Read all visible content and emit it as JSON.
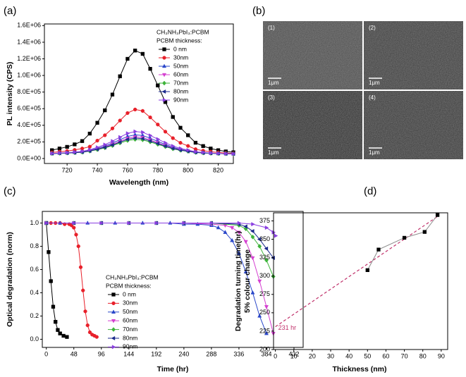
{
  "chart_data": [
    {
      "type": "line",
      "panel_label": "(a)",
      "xlabel": "Wavelength (nm)",
      "ylabel": "PL intensity (CPS)",
      "legend_title": "CH₃NH₃PbI₃:PCBM",
      "legend_subtitle": "PCBM thickness:",
      "xlim": [
        705,
        830
      ],
      "xticks": [
        720,
        740,
        760,
        780,
        800,
        820
      ],
      "ylim": [
        -60000,
        1620000
      ],
      "yticks": [
        {
          "value": 0,
          "label": "0.0E+00"
        },
        {
          "value": 200000,
          "label": "2.0E+05"
        },
        {
          "value": 400000,
          "label": "4.0E+05"
        },
        {
          "value": 600000,
          "label": "6.0E+05"
        },
        {
          "value": 800000,
          "label": "8.0E+05"
        },
        {
          "value": 1000000,
          "label": "1.0E+06"
        },
        {
          "value": 1200000,
          "label": "1.2E+06"
        },
        {
          "value": 1400000,
          "label": "1.4E+06"
        },
        {
          "value": 1600000,
          "label": "1.6E+06"
        }
      ],
      "x": [
        710,
        715,
        720,
        725,
        730,
        735,
        740,
        745,
        750,
        755,
        760,
        765,
        770,
        775,
        780,
        785,
        790,
        795,
        800,
        805,
        810,
        815,
        820,
        825,
        830
      ],
      "series": [
        {
          "name": "0  nm",
          "color": "#000000",
          "marker": "square",
          "values": [
            100000,
            120000,
            140000,
            170000,
            210000,
            300000,
            430000,
            580000,
            770000,
            990000,
            1200000,
            1300000,
            1260000,
            1080000,
            880000,
            680000,
            500000,
            370000,
            280000,
            190000,
            150000,
            120000,
            100000,
            85000,
            75000
          ]
        },
        {
          "name": "30nm",
          "color": "#e8202a",
          "marker": "circle",
          "values": [
            73000,
            82000,
            90000,
            103000,
            120000,
            142000,
            215000,
            280000,
            362000,
            457000,
            547000,
            590000,
            573000,
            495000,
            409000,
            323000,
            245000,
            189000,
            151000,
            112000,
            94000,
            82000,
            73000,
            66000,
            62000
          ]
        },
        {
          "name": "50nm",
          "color": "#2946c9",
          "marker": "triangle-up",
          "values": [
            60000,
            64000,
            68000,
            74000,
            81000,
            99000,
            122000,
            150000,
            186000,
            227000,
            266000,
            285000,
            277000,
            244000,
            207000,
            169000,
            135000,
            111000,
            94000,
            77000,
            70000,
            64000,
            60000,
            58000,
            56000
          ]
        },
        {
          "name": "60nm",
          "color": "#d43fd0",
          "marker": "triangle-down",
          "values": [
            60000,
            63000,
            67000,
            72000,
            78000,
            94000,
            115000,
            140000,
            172000,
            208000,
            243000,
            260000,
            253000,
            223000,
            190000,
            157000,
            127000,
            105000,
            90000,
            75000,
            68000,
            63000,
            60000,
            57000,
            56000
          ]
        },
        {
          "name": "70nm",
          "color": "#3db33a",
          "marker": "diamond",
          "values": [
            59000,
            62000,
            65000,
            69000,
            75000,
            88000,
            106000,
            128000,
            155000,
            186000,
            216000,
            230000,
            224000,
            199000,
            170000,
            142000,
            116000,
            98000,
            85000,
            72000,
            66000,
            62000,
            59000,
            57000,
            56000
          ]
        },
        {
          "name": "80nm",
          "color": "#1b2a8c",
          "marker": "triangle-left",
          "values": [
            60000,
            63000,
            66000,
            70000,
            77000,
            91000,
            111000,
            134000,
            163000,
            197000,
            230000,
            245000,
            239000,
            211000,
            180000,
            149000,
            122000,
            101000,
            87000,
            74000,
            67000,
            63000,
            60000,
            57000,
            56000
          ]
        },
        {
          "name": "90nm",
          "color": "#8a3fe0",
          "marker": "triangle-right",
          "values": [
            61000,
            66000,
            70000,
            77000,
            86000,
            106000,
            134000,
            167000,
            209000,
            257000,
            303000,
            325000,
            316000,
            277000,
            233000,
            189000,
            150000,
            121000,
            101000,
            81000,
            73000,
            66000,
            61000,
            58000,
            56000
          ]
        }
      ]
    },
    {
      "type": "line",
      "panel_label": "(c)",
      "xlabel": "Time (hr)",
      "ylabel": "Optical degradation (norm)",
      "legend_title": "CH₃NH₃PbI₃:PCBM",
      "legend_subtitle": "PCBM thickness:",
      "xlim": [
        -7,
        448
      ],
      "xticks": [
        0,
        48,
        96,
        144,
        192,
        240,
        288,
        336,
        384,
        432
      ],
      "ylim": [
        -0.07,
        1.1
      ],
      "yticks": [
        {
          "value": 0,
          "label": "0.0"
        },
        0.2,
        0.4,
        0.6,
        0.8,
        {
          "value": 1,
          "label": "1.0"
        }
      ],
      "series": [
        {
          "name": "0  nm",
          "color": "#000000",
          "marker": "square",
          "x": [
            0,
            4,
            8,
            12,
            16,
            20,
            24,
            30,
            36
          ],
          "values": [
            1.0,
            0.75,
            0.5,
            0.28,
            0.15,
            0.08,
            0.05,
            0.03,
            0.02
          ]
        },
        {
          "name": "30nm",
          "color": "#e8202a",
          "marker": "circle",
          "x": [
            0,
            8,
            16,
            24,
            32,
            40,
            44,
            48,
            52,
            56,
            60,
            64,
            68,
            72,
            76,
            80,
            84,
            88
          ],
          "values": [
            1,
            1,
            1,
            1,
            0.99,
            0.99,
            0.98,
            0.96,
            0.9,
            0.8,
            0.62,
            0.42,
            0.24,
            0.12,
            0.06,
            0.04,
            0.03,
            0.02
          ]
        },
        {
          "name": "50nm",
          "color": "#2946c9",
          "marker": "triangle-up",
          "x": [
            0,
            24,
            48,
            72,
            96,
            120,
            144,
            168,
            192,
            216,
            240,
            264,
            288,
            300,
            312,
            324,
            336,
            348,
            360,
            372,
            384
          ],
          "values": [
            1,
            1,
            1,
            1,
            1,
            1,
            1,
            1,
            1,
            1,
            0.99,
            0.99,
            0.98,
            0.96,
            0.92,
            0.85,
            0.74,
            0.58,
            0.4,
            0.2,
            0.05
          ]
        },
        {
          "name": "60nm",
          "color": "#d43fd0",
          "marker": "triangle-down",
          "x": [
            0,
            48,
            96,
            144,
            192,
            240,
            288,
            312,
            324,
            336,
            348,
            360,
            372,
            384,
            396
          ],
          "values": [
            1,
            1,
            1,
            1,
            1,
            1,
            0.99,
            0.98,
            0.96,
            0.92,
            0.84,
            0.7,
            0.5,
            0.28,
            0.05
          ]
        },
        {
          "name": "70nm",
          "color": "#3db33a",
          "marker": "diamond",
          "x": [
            0,
            48,
            96,
            144,
            192,
            240,
            288,
            336,
            348,
            360,
            372,
            384,
            396
          ],
          "values": [
            1,
            1,
            1,
            1,
            1,
            1,
            1,
            0.98,
            0.95,
            0.88,
            0.8,
            0.68,
            0.54
          ]
        },
        {
          "name": "80nm",
          "color": "#1b2a8c",
          "marker": "triangle-left",
          "x": [
            0,
            48,
            96,
            144,
            192,
            240,
            288,
            336,
            348,
            360,
            372,
            384,
            396
          ],
          "values": [
            1,
            1,
            1,
            1,
            1,
            1,
            1,
            0.99,
            0.97,
            0.93,
            0.86,
            0.78,
            0.7
          ]
        },
        {
          "name": "90nm",
          "color": "#8a3fe0",
          "marker": "triangle-right",
          "x": [
            0,
            48,
            96,
            144,
            192,
            240,
            288,
            336,
            360,
            384,
            396,
            400
          ],
          "values": [
            1,
            1,
            1,
            1,
            1,
            1,
            1,
            1,
            0.99,
            0.96,
            0.92,
            0.89
          ]
        }
      ]
    },
    {
      "type": "scatter",
      "panel_label": "(d)",
      "xlabel": "Thickness (nm)",
      "ylabel": [
        "Degradation turning time(hr)",
        "5% colour change"
      ],
      "xlim": [
        -1,
        93.5
      ],
      "xticks": [
        0,
        10,
        20,
        30,
        40,
        50,
        60,
        70,
        80,
        90
      ],
      "ylim": [
        200,
        386
      ],
      "yticks": [
        200,
        225,
        250,
        275,
        300,
        325,
        350,
        375
      ],
      "series": [
        {
          "color": "#000000",
          "line_color": "#8a8a8a",
          "marker": "square",
          "x": [
            50,
            56,
            70,
            81,
            88
          ],
          "values": [
            308,
            336,
            352,
            360,
            383
          ]
        }
      ],
      "fit": {
        "color": "#c0306a",
        "x": [
          0,
          88
        ],
        "values": [
          231,
          381
        ]
      },
      "annotation": "231 hr"
    }
  ],
  "micrographs": {
    "panel_label": "(b)",
    "images": [
      {
        "label": "(1)",
        "scale_bar": "1μm"
      },
      {
        "label": "(2)",
        "scale_bar": "1μm"
      },
      {
        "label": "(3)",
        "scale_bar": "1μm"
      },
      {
        "label": "(4)",
        "scale_bar": "1μm"
      }
    ]
  }
}
